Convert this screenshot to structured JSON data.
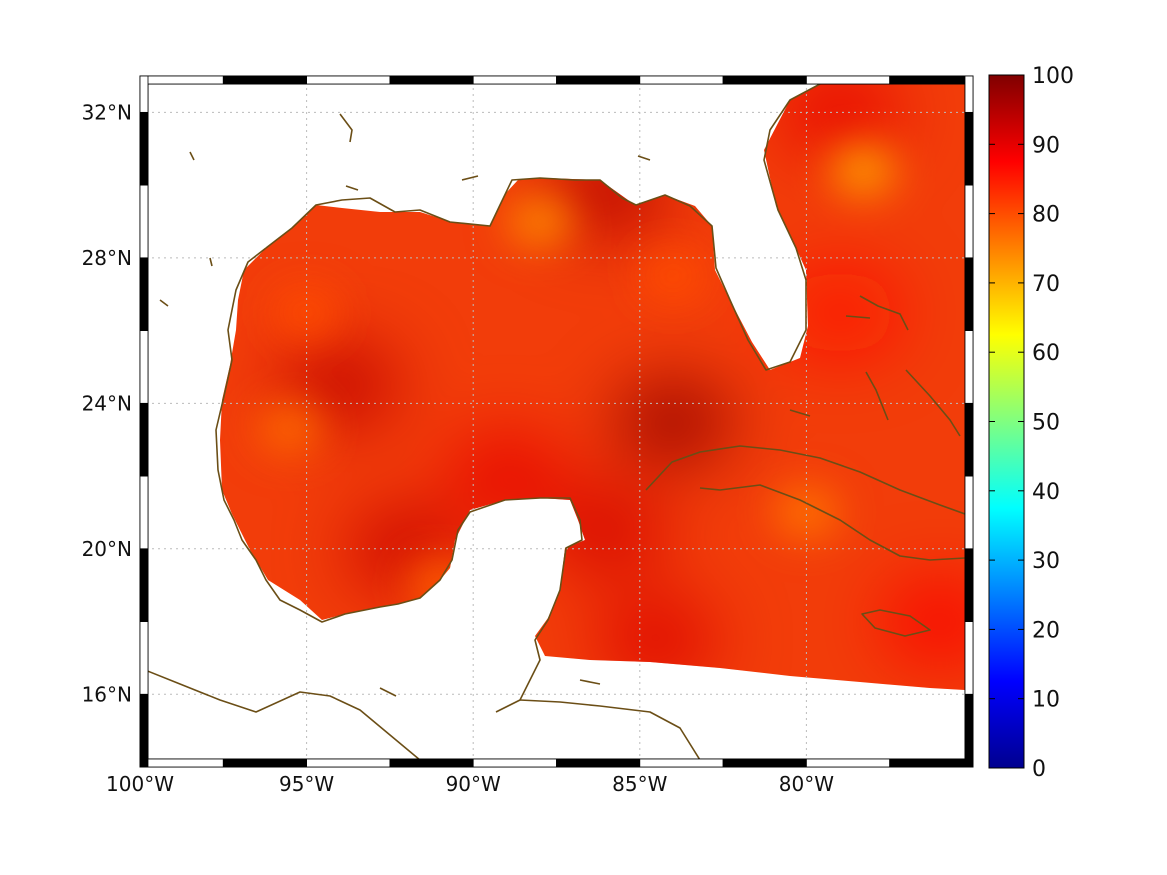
{
  "map": {
    "region": "Gulf of Mexico and western Caribbean",
    "lon_range": [
      -100,
      -75
    ],
    "lat_range": [
      14,
      33
    ],
    "x_ticks": [
      {
        "lon": -100,
        "label": "100°W"
      },
      {
        "lon": -95,
        "label": "95°W"
      },
      {
        "lon": -90,
        "label": "90°W"
      },
      {
        "lon": -85,
        "label": "85°W"
      },
      {
        "lon": -80,
        "label": "80°W"
      }
    ],
    "y_ticks": [
      {
        "lat": 32,
        "label": "32°N"
      },
      {
        "lat": 28,
        "label": "28°N"
      },
      {
        "lat": 24,
        "label": "24°N"
      },
      {
        "lat": 20,
        "label": "20°N"
      },
      {
        "lat": 16,
        "label": "16°N"
      }
    ],
    "grid": "dotted",
    "frame": "alternating black and white border",
    "coastline_color": "#6b4e16",
    "land_color": "#ffffff",
    "field": "gridded values over water, roughly 75–100 across the domain",
    "hotspots": [
      {
        "lon": -84,
        "lat": 23.5,
        "value": 98
      },
      {
        "lon": -94,
        "lat": 24.5,
        "value": 94
      },
      {
        "lon": -92,
        "lat": 20,
        "value": 93
      },
      {
        "lon": -89,
        "lat": 22,
        "value": 90
      },
      {
        "lon": -86,
        "lat": 20.5,
        "value": 92
      },
      {
        "lon": -84.5,
        "lat": 17.5,
        "value": 91
      },
      {
        "lon": -86,
        "lat": 29.8,
        "value": 95
      },
      {
        "lon": -79,
        "lat": 32,
        "value": 90
      },
      {
        "lon": -79,
        "lat": 26.5,
        "value": 86
      },
      {
        "lon": -76,
        "lat": 18,
        "value": 88
      }
    ],
    "coolspots": [
      {
        "lon": -78.3,
        "lat": 30.4,
        "value": 72
      },
      {
        "lon": -88,
        "lat": 29,
        "value": 74
      },
      {
        "lon": -95.5,
        "lat": 23.3,
        "value": 77
      },
      {
        "lon": -95,
        "lat": 26.5,
        "value": 80
      },
      {
        "lon": -80,
        "lat": 21,
        "value": 76
      },
      {
        "lon": -91,
        "lat": 19,
        "value": 78
      },
      {
        "lon": -84,
        "lat": 27.5,
        "value": 80
      }
    ]
  },
  "colorbar": {
    "min": 0,
    "max": 100,
    "labels": [
      "0",
      "10",
      "20",
      "30",
      "40",
      "50",
      "60",
      "70",
      "80",
      "90",
      "100"
    ],
    "colormap": "jet",
    "stops": [
      "#00008f",
      "#0000ff",
      "#0080ff",
      "#00ffff",
      "#80ff80",
      "#ffff00",
      "#ff8000",
      "#ff0000",
      "#800000"
    ]
  }
}
